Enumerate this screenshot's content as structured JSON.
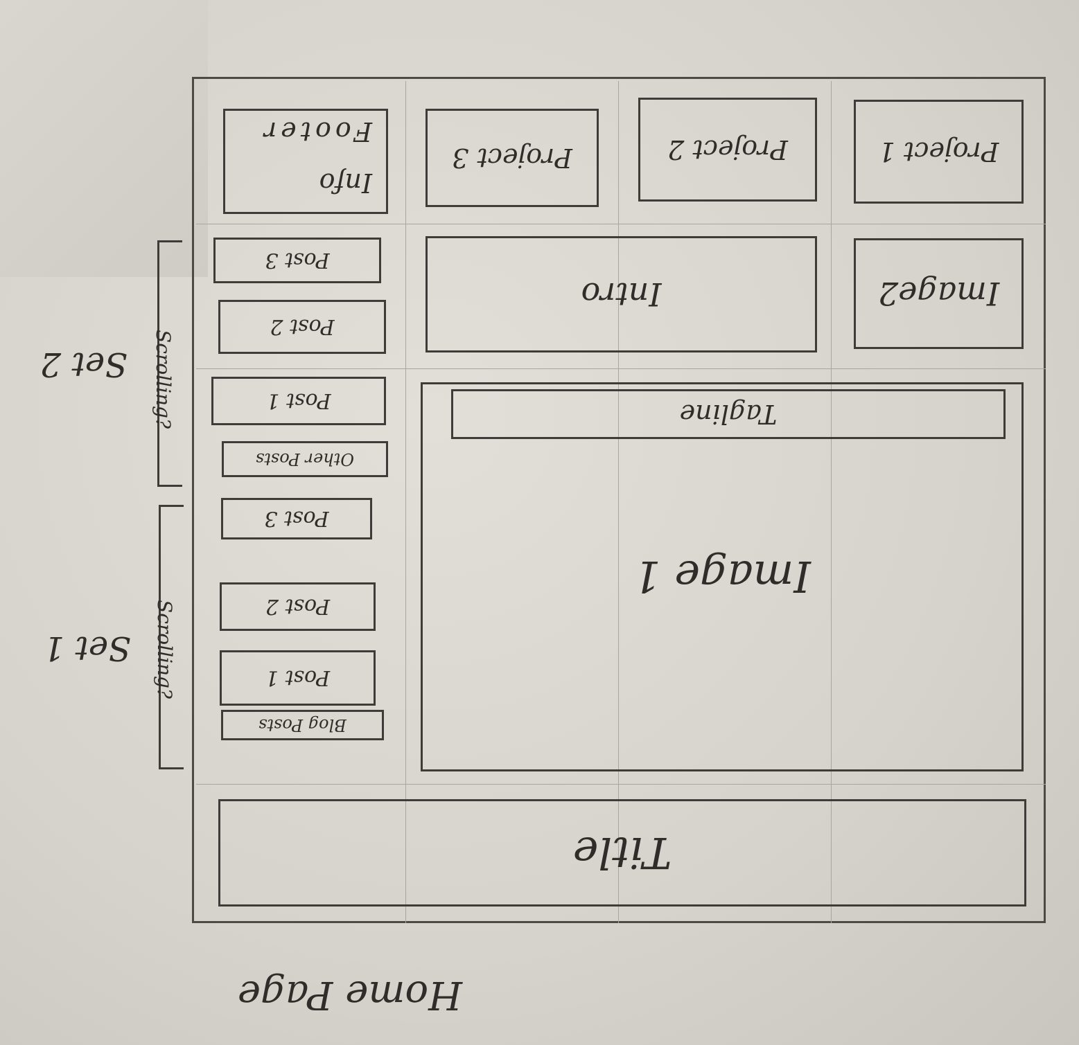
{
  "page_label": "Home Page",
  "title_box": "Title",
  "tagline_box": "Tagline",
  "image1_box": "Image 1",
  "image2_box": "Image2",
  "intro_box": "Intro",
  "projects": [
    "Project 1",
    "Project 2",
    "Project 3"
  ],
  "footer": {
    "line1": "Footer",
    "line2": "Info"
  },
  "set1": {
    "label": "Set 1",
    "scroll_note": "Scrolling?",
    "header": "Blog Posts",
    "posts": [
      "Post 1",
      "Post 2",
      "Post 3"
    ]
  },
  "set2": {
    "label": "Set 2",
    "scroll_note": "Scrolling?",
    "header": "Other Posts",
    "posts": [
      "Post 1",
      "Post 2",
      "Post 3"
    ]
  }
}
